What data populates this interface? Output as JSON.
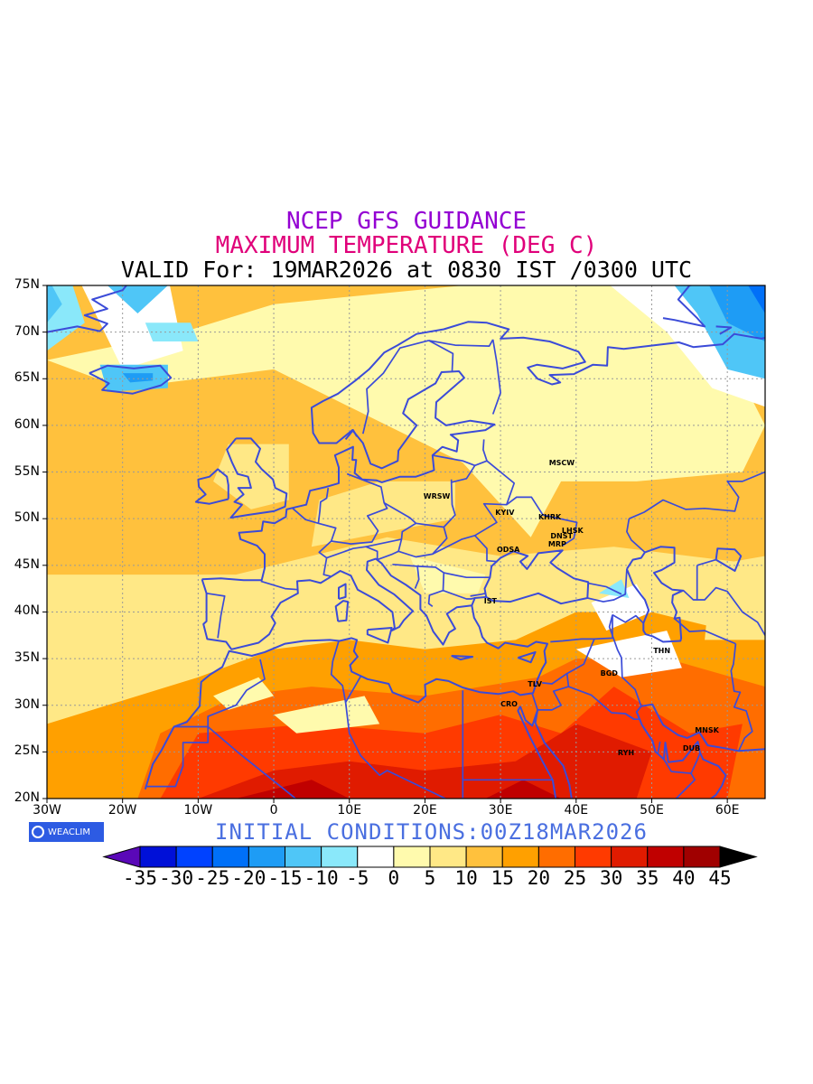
{
  "title": {
    "line1": "NCEP GFS GUIDANCE",
    "line2": "MAXIMUM TEMPERATURE (DEG C)",
    "line3": "VALID For: 19MAR2026 at 0830 IST /0300 UTC",
    "line1_color": "#9400d3",
    "line2_color": "#e0007a",
    "line3_color": "#000000"
  },
  "map": {
    "lon_range": [
      -30,
      65
    ],
    "lat_range": [
      20,
      75
    ],
    "lat_labels": [
      "75N",
      "70N",
      "65N",
      "60N",
      "55N",
      "50N",
      "45N",
      "40N",
      "35N",
      "30N",
      "25N",
      "20N"
    ],
    "lon_labels": [
      "30W",
      "20W",
      "10W",
      "0",
      "10E",
      "20E",
      "30E",
      "40E",
      "50E",
      "60E"
    ],
    "gridlines": "dotted",
    "outline_color": "#3b4bd8",
    "cities": [
      {
        "label": "MSCW",
        "lon": 37.6,
        "lat": 55.8
      },
      {
        "label": "WRSW",
        "lon": 21.0,
        "lat": 52.2
      },
      {
        "label": "KYIV",
        "lon": 30.5,
        "lat": 50.5
      },
      {
        "label": "KHRK",
        "lon": 36.2,
        "lat": 50.0
      },
      {
        "label": "LHSK",
        "lon": 39.3,
        "lat": 48.6
      },
      {
        "label": "DNST",
        "lon": 37.8,
        "lat": 48.0
      },
      {
        "label": "MRP",
        "lon": 37.5,
        "lat": 47.1
      },
      {
        "label": "ODSA",
        "lon": 30.7,
        "lat": 46.5
      },
      {
        "label": "IST",
        "lon": 29.0,
        "lat": 41.0
      },
      {
        "label": "THN",
        "lon": 51.4,
        "lat": 35.7
      },
      {
        "label": "BGD",
        "lon": 44.4,
        "lat": 33.3
      },
      {
        "label": "TLV",
        "lon": 34.8,
        "lat": 32.1
      },
      {
        "label": "CRO",
        "lon": 31.2,
        "lat": 30.0
      },
      {
        "label": "MNSK",
        "lon": 56.9,
        "lat": 27.2
      },
      {
        "label": "DUB",
        "lon": 55.3,
        "lat": 25.2
      },
      {
        "label": "RYH",
        "lon": 46.7,
        "lat": 24.7
      }
    ]
  },
  "logo": {
    "text": "WEACLIM",
    "bg_color": "#2d5be3"
  },
  "initial_conditions": {
    "text": "INITIAL CONDITIONS:00Z18MAR2026",
    "color": "#4a6fe0"
  },
  "colorbar": {
    "labels": [
      "-35",
      "-30",
      "-25",
      "-20",
      "-15",
      "-10",
      "-5",
      "0",
      "5",
      "10",
      "15",
      "20",
      "25",
      "30",
      "35",
      "40",
      "45"
    ],
    "colors": [
      "#5a08b8",
      "#0010d8",
      "#0042ff",
      "#0070f8",
      "#1e9cf5",
      "#4fc6f7",
      "#8ae8fa",
      "#ffffff",
      "#fffaad",
      "#ffe886",
      "#ffc13d",
      "#ffa000",
      "#ff6d00",
      "#ff3a00",
      "#e01b00",
      "#c00000",
      "#a00000",
      "#000000"
    ]
  }
}
